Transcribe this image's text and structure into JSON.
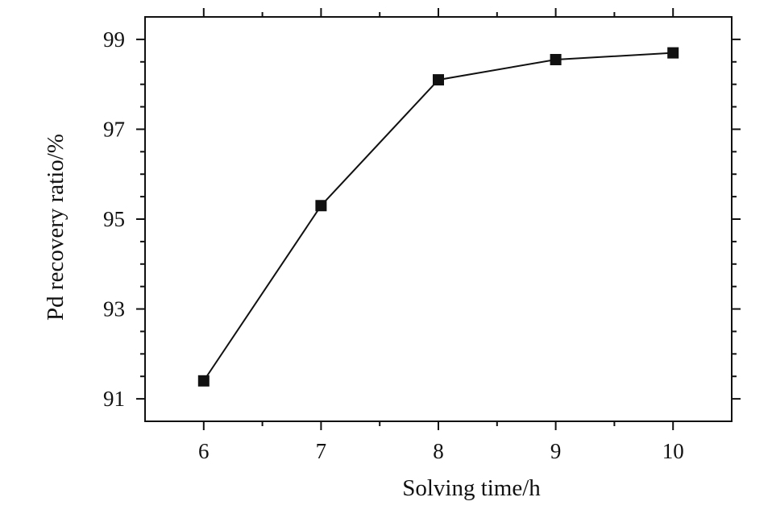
{
  "chart_data": {
    "type": "line",
    "title": "",
    "xlabel": "Solving time/h",
    "ylabel": "Pd recovery ratio/%",
    "x": [
      6,
      7,
      8,
      9,
      10
    ],
    "series": [
      {
        "values": [
          91.4,
          95.3,
          98.1,
          98.55,
          98.7
        ]
      }
    ],
    "xlim": [
      5.5,
      10.5
    ],
    "ylim": [
      90.5,
      99.5
    ],
    "xticks": [
      "6",
      "7",
      "8",
      "9",
      "10"
    ],
    "yticks": [
      "91",
      "93",
      "95",
      "97",
      "99"
    ],
    "marker": "square",
    "grid": false,
    "legend": "none",
    "colors": {
      "line": "#111111",
      "marker": "#111111",
      "axis": "#111111"
    }
  }
}
